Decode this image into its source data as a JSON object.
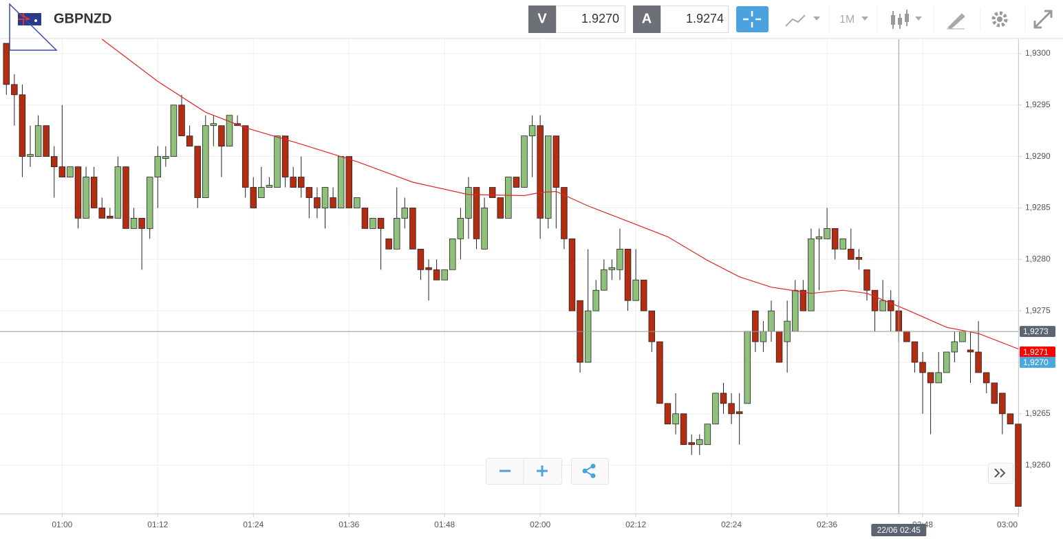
{
  "header": {
    "symbol": "GBPNZD",
    "sell_label": "V",
    "sell_price": "1.9270",
    "buy_label": "A",
    "buy_price": "1.9274",
    "timeframe": "1M"
  },
  "chart_data": {
    "type": "candlestick",
    "up_color": "#8fc07c",
    "down_color": "#b22d12",
    "x": [
      53,
      54,
      55,
      56,
      57,
      58,
      59,
      60,
      61,
      62,
      63,
      64,
      65,
      66,
      67,
      68,
      69,
      70,
      71,
      72,
      73,
      74,
      75,
      76,
      77,
      78,
      79,
      80,
      81,
      82,
      83,
      84,
      85,
      86,
      87,
      88,
      89,
      90,
      91,
      92,
      93,
      94,
      95,
      96,
      97,
      98,
      99,
      100,
      101,
      102,
      103,
      104,
      105,
      106,
      107,
      108,
      109,
      110,
      111,
      112,
      113,
      114,
      115,
      116,
      117,
      118,
      119,
      120,
      121,
      122,
      123,
      124,
      125,
      126,
      127,
      128,
      129,
      130,
      131,
      132,
      133,
      134,
      135,
      136,
      137,
      138,
      139,
      140,
      141,
      142,
      143,
      144,
      145,
      146,
      147,
      148,
      149,
      150,
      151,
      152,
      153,
      154,
      155,
      156,
      157,
      158,
      159,
      160,
      161,
      162,
      163,
      164,
      165,
      166,
      167,
      168,
      169,
      170,
      171,
      172,
      173,
      174,
      175,
      176,
      177,
      178,
      179,
      180
    ],
    "open": [
      1.9301,
      1.9297,
      1.9296,
      1.929,
      1.929,
      1.9293,
      1.929,
      1.9289,
      1.9288,
      1.9289,
      1.9284,
      1.9288,
      1.9285,
      1.92842,
      1.9284,
      1.9289,
      1.9283,
      1.9284,
      1.9283,
      1.9288,
      1.92898,
      1.929,
      1.9295,
      1.9292,
      1.9291,
      1.9286,
      1.9293,
      1.9293,
      1.9291,
      1.92932,
      1.9293,
      1.9287,
      1.9286,
      1.9287,
      1.9287,
      1.9292,
      1.9288,
      1.9288,
      1.9287,
      1.9286,
      1.9285,
      1.9286,
      1.9285,
      1.929,
      1.9285,
      1.9285,
      1.9283,
      1.9284,
      1.9282,
      1.9281,
      1.9284,
      1.9285,
      1.9281,
      1.92792,
      1.9279,
      1.9278,
      1.9279,
      1.9282,
      1.9284,
      1.9287,
      1.9281,
      1.9287,
      1.9286,
      1.9284,
      1.9288,
      1.9287,
      1.9292,
      1.9293,
      1.9284,
      1.9292,
      1.9287,
      1.9282,
      1.9276,
      1.927,
      1.9275,
      1.9277,
      1.9279,
      1.9279,
      1.9281,
      1.9276,
      1.9278,
      1.9275,
      1.9272,
      1.9266,
      1.9264,
      1.9265,
      1.92622,
      1.9262,
      1.9262,
      1.9264,
      1.9267,
      1.9266,
      1.92652,
      1.9266,
      1.9275,
      1.9272,
      1.9273,
      1.9273,
      1.9272,
      1.9273,
      1.9277,
      1.9275,
      1.9282,
      1.9282,
      1.9283,
      1.9281,
      1.9281,
      1.92802,
      1.9279,
      1.9277,
      1.9275,
      1.9276,
      1.9275,
      1.9273,
      1.9272,
      1.927,
      1.9269,
      1.9268,
      1.9269,
      1.9271,
      1.9272,
      1.92712,
      1.9271,
      1.9269,
      1.9268,
      1.9267,
      1.9265,
      1.9264
    ],
    "high": [
      1.9301,
      1.9298,
      1.9297,
      1.9293,
      1.9294,
      1.9293,
      1.9291,
      1.9295,
      1.9289,
      1.9289,
      1.9289,
      1.9289,
      1.9286,
      1.9285,
      1.929,
      1.9289,
      1.9285,
      1.9284,
      1.9288,
      1.9291,
      1.9291,
      1.9295,
      1.9296,
      1.9293,
      1.9291,
      1.9294,
      1.9294,
      1.9293,
      1.9294,
      1.9294,
      1.9293,
      1.9288,
      1.9289,
      1.9288,
      1.9292,
      1.9292,
      1.9289,
      1.929,
      1.9287,
      1.9287,
      1.9287,
      1.9287,
      1.929,
      1.929,
      1.9286,
      1.9285,
      1.9284,
      1.9284,
      1.9282,
      1.9287,
      1.9286,
      1.9285,
      1.9281,
      1.928,
      1.928,
      1.9279,
      1.9282,
      1.9285,
      1.9288,
      1.9287,
      1.9286,
      1.9287,
      1.9286,
      1.9288,
      1.9288,
      1.9292,
      1.9294,
      1.9294,
      1.9292,
      1.9292,
      1.9287,
      1.9282,
      1.9276,
      1.9281,
      1.9278,
      1.928,
      1.928,
      1.9283,
      1.9281,
      1.9281,
      1.9278,
      1.9275,
      1.9272,
      1.9266,
      1.9267,
      1.9265,
      1.9263,
      1.9263,
      1.9264,
      1.9267,
      1.9268,
      1.9267,
      1.9267,
      1.9273,
      1.9275,
      1.9274,
      1.9276,
      1.9273,
      1.9276,
      1.9278,
      1.9278,
      1.9283,
      1.9283,
      1.9285,
      1.9283,
      1.9282,
      1.9283,
      1.9281,
      1.9279,
      1.9277,
      1.9278,
      1.9277,
      1.9276,
      1.9273,
      1.9272,
      1.9271,
      1.9269,
      1.9271,
      1.9271,
      1.9273,
      1.9273,
      1.9273,
      1.9274,
      1.9269,
      1.9268,
      1.9267,
      1.9265,
      1.9264
    ],
    "low": [
      1.9296,
      1.9293,
      1.9288,
      1.9289,
      1.929,
      1.929,
      1.9286,
      1.9288,
      1.9288,
      1.9283,
      1.9284,
      1.9285,
      1.9284,
      1.9284,
      1.9284,
      1.9283,
      1.9283,
      1.9279,
      1.9282,
      1.9285,
      1.9289,
      1.929,
      1.9292,
      1.9291,
      1.9285,
      1.9286,
      1.9291,
      1.9288,
      1.9291,
      1.9293,
      1.9286,
      1.9285,
      1.9286,
      1.9287,
      1.9287,
      1.9287,
      1.9287,
      1.9286,
      1.9284,
      1.9284,
      1.9283,
      1.9285,
      1.9285,
      1.9285,
      1.9285,
      1.9283,
      1.9283,
      1.9279,
      1.9281,
      1.9281,
      1.9283,
      1.9281,
      1.9278,
      1.9276,
      1.9278,
      1.9278,
      1.9279,
      1.928,
      1.9282,
      1.9281,
      1.9281,
      1.9286,
      1.9284,
      1.9284,
      1.9287,
      1.9287,
      1.9288,
      1.9282,
      1.9283,
      1.9283,
      1.9281,
      1.9275,
      1.9269,
      1.927,
      1.9275,
      1.9277,
      1.9278,
      1.9278,
      1.9275,
      1.9276,
      1.9275,
      1.9271,
      1.9266,
      1.9264,
      1.9263,
      1.9262,
      1.9261,
      1.9261,
      1.9262,
      1.9264,
      1.9265,
      1.9264,
      1.9262,
      1.9266,
      1.9271,
      1.9271,
      1.9272,
      1.927,
      1.9269,
      1.9273,
      1.9275,
      1.9275,
      1.9277,
      1.9282,
      1.928,
      1.9281,
      1.928,
      1.9279,
      1.9276,
      1.9273,
      1.9275,
      1.9273,
      1.9272,
      1.9272,
      1.9269,
      1.9265,
      1.9263,
      1.9268,
      1.9269,
      1.927,
      1.9272,
      1.9268,
      1.9269,
      1.9267,
      1.9266,
      1.9263,
      1.9264,
      1.9256
    ],
    "close": [
      1.9297,
      1.9296,
      1.929,
      1.92902,
      1.9293,
      1.929,
      1.9289,
      1.9288,
      1.9289,
      1.9284,
      1.9288,
      1.9285,
      1.9284,
      1.9284,
      1.9289,
      1.9283,
      1.9284,
      1.9283,
      1.9288,
      1.929,
      1.929,
      1.9295,
      1.9292,
      1.9291,
      1.9286,
      1.9293,
      1.92932,
      1.9291,
      1.9294,
      1.9293,
      1.9287,
      1.9285,
      1.9287,
      1.92872,
      1.9292,
      1.9288,
      1.9287,
      1.9287,
      1.9286,
      1.9285,
      1.9287,
      1.9285,
      1.929,
      1.9285,
      1.9286,
      1.9283,
      1.9284,
      1.9283,
      1.9281,
      1.9284,
      1.9285,
      1.9281,
      1.9279,
      1.9279,
      1.9278,
      1.9279,
      1.9282,
      1.9284,
      1.9287,
      1.9282,
      1.9285,
      1.9286,
      1.9284,
      1.9288,
      1.9287,
      1.9292,
      1.9293,
      1.9284,
      1.9292,
      1.9287,
      1.9282,
      1.9275,
      1.927,
      1.9275,
      1.9277,
      1.9279,
      1.92792,
      1.9281,
      1.9276,
      1.9278,
      1.9275,
      1.9272,
      1.9266,
      1.9264,
      1.9265,
      1.9262,
      1.9262,
      1.92625,
      1.9264,
      1.9267,
      1.9266,
      1.9265,
      1.9265,
      1.9273,
      1.9272,
      1.9273,
      1.9275,
      1.927,
      1.9274,
      1.9277,
      1.9275,
      1.9282,
      1.92822,
      1.9283,
      1.9281,
      1.9282,
      1.928,
      1.928,
      1.9277,
      1.9275,
      1.9276,
      1.9275,
      1.9273,
      1.9272,
      1.927,
      1.9269,
      1.9268,
      1.9269,
      1.9271,
      1.9272,
      1.9273,
      1.9271,
      1.9269,
      1.9268,
      1.9266,
      1.9265,
      1.9264,
      1.9256
    ],
    "moving_average": {
      "color": "#e02525",
      "x": [
        65,
        72,
        78,
        83,
        90,
        97,
        104,
        111,
        118,
        120,
        122,
        126,
        131,
        136,
        141,
        145,
        149,
        154,
        158,
        161,
        166,
        171,
        175,
        180
      ],
      "values": [
        1.93014,
        1.92973,
        1.92943,
        1.92928,
        1.92912,
        1.92895,
        1.92875,
        1.92863,
        1.92862,
        1.92865,
        1.92866,
        1.92852,
        1.92837,
        1.92822,
        1.92799,
        1.92783,
        1.92773,
        1.92767,
        1.9277,
        1.92767,
        1.92751,
        1.92734,
        1.92728,
        1.92713
      ]
    },
    "xlim": [
      52.2,
      180.0
    ],
    "ylim": [
      1.92553,
      1.93014
    ],
    "xticks": [
      {
        "value": 60,
        "label": "01:00"
      },
      {
        "value": 72,
        "label": "01:12"
      },
      {
        "value": 84,
        "label": "01:24"
      },
      {
        "value": 96,
        "label": "01:36"
      },
      {
        "value": 108,
        "label": "01:48"
      },
      {
        "value": 120,
        "label": "02:00"
      },
      {
        "value": 132,
        "label": "02:12"
      },
      {
        "value": 144,
        "label": "02:24"
      },
      {
        "value": 156,
        "label": "02:36"
      },
      {
        "value": 168,
        "label": "02:48"
      },
      {
        "value": 180,
        "label": "03:00"
      }
    ],
    "yticks": [
      {
        "value": 1.926,
        "label": "1,9260"
      },
      {
        "value": 1.9265,
        "label": "1,9265"
      },
      {
        "value": 1.927,
        "label": "1,9270"
      },
      {
        "value": 1.9275,
        "label": "1,9275"
      },
      {
        "value": 1.928,
        "label": "1,9280"
      },
      {
        "value": 1.9285,
        "label": "1,9285"
      },
      {
        "value": 1.929,
        "label": "1,9290"
      },
      {
        "value": 1.9295,
        "label": "1,9295"
      },
      {
        "value": 1.93,
        "label": "1,9300"
      }
    ],
    "grid": true,
    "crosshair": {
      "x": {
        "value": 165,
        "label": "22/06 02:45"
      },
      "y": {
        "value": 1.9273,
        "label": "1,9273"
      },
      "color": "#5b6470"
    },
    "last_price": {
      "value": 1.9271,
      "label": "1,9271",
      "color": "#ff0000"
    },
    "bid_price": {
      "value": 1.927,
      "label": "1,9270",
      "color": "#4aa8dc"
    }
  }
}
